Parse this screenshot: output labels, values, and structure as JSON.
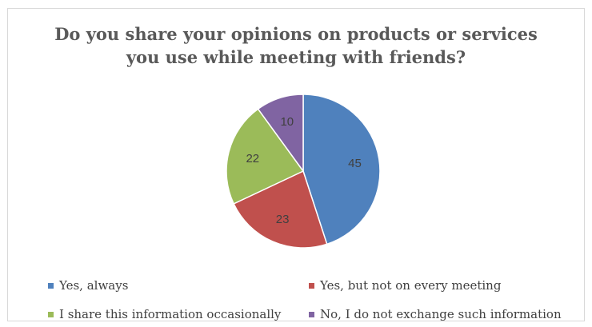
{
  "chart_data": {
    "type": "pie",
    "title_lines": [
      "Do you share your opinions on products or services",
      "you use while meeting with friends?"
    ],
    "categories": [
      "Yes, always",
      "Yes, but not on every meeting",
      "I share this information occasionally",
      "No, I do not exchange such information"
    ],
    "values": [
      45,
      23,
      22,
      10
    ],
    "data_labels": [
      "45",
      "23",
      "22",
      "10"
    ],
    "colors": [
      "#4f81bd",
      "#c0504d",
      "#9bbb59",
      "#8064a2"
    ],
    "legend_position": "bottom",
    "start_angle": "top",
    "direction": "clockwise"
  }
}
